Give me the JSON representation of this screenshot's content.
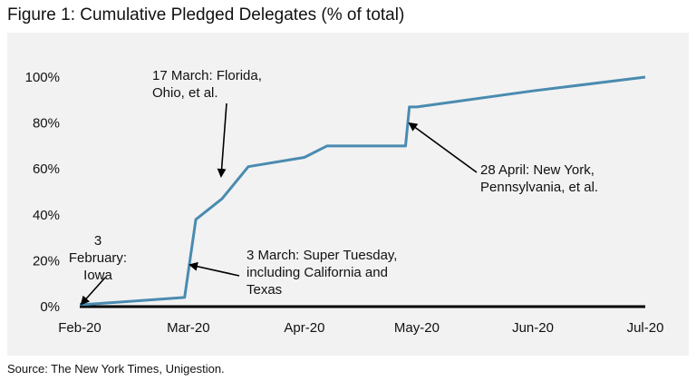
{
  "figure_title": "Figure 1: Cumulative Pledged Delegates (% of total)",
  "source": "Source: The New York Times, Unigestion.",
  "chart_data": {
    "type": "line",
    "title": "Figure 1: Cumulative Pledged Delegates (% of total)",
    "xlabel": "",
    "ylabel": "",
    "x_ticks": [
      "Feb-20",
      "Mar-20",
      "Apr-20",
      "May-20",
      "Jun-20",
      "Jul-20"
    ],
    "y_ticks": [
      "0%",
      "20%",
      "40%",
      "60%",
      "80%",
      "100%"
    ],
    "ylim": [
      0,
      1.0
    ],
    "grid": false,
    "line_color": "#4a8bb0",
    "series": [
      {
        "name": "",
        "points": [
          {
            "x": "2020-02-01",
            "y": 0.01
          },
          {
            "x": "2020-02-03",
            "y": 0.01
          },
          {
            "x": "2020-02-29",
            "y": 0.04
          },
          {
            "x": "2020-03-03",
            "y": 0.38
          },
          {
            "x": "2020-03-10",
            "y": 0.47
          },
          {
            "x": "2020-03-17",
            "y": 0.61
          },
          {
            "x": "2020-04-01",
            "y": 0.65
          },
          {
            "x": "2020-04-07",
            "y": 0.7
          },
          {
            "x": "2020-04-28",
            "y": 0.7
          },
          {
            "x": "2020-04-29",
            "y": 0.87
          },
          {
            "x": "2020-05-01",
            "y": 0.87
          },
          {
            "x": "2020-06-01",
            "y": 0.94
          },
          {
            "x": "2020-07-01",
            "y": 1.0
          }
        ]
      }
    ],
    "annotations": [
      {
        "lines": [
          "3",
          "February:",
          "Iowa"
        ],
        "x": "2020-02-03",
        "y": 0.01
      },
      {
        "lines": [
          "17 March: Florida,",
          "Ohio, et al."
        ],
        "x": "2020-03-17",
        "y": 0.61
      },
      {
        "lines": [
          "3 March: Super Tuesday,",
          "including California and",
          "Texas"
        ],
        "x": "2020-03-03",
        "y": 0.18
      },
      {
        "lines": [
          "28 April: New York,",
          "Pennsylvania, et al."
        ],
        "x": "2020-04-28",
        "y": 0.87
      }
    ]
  }
}
